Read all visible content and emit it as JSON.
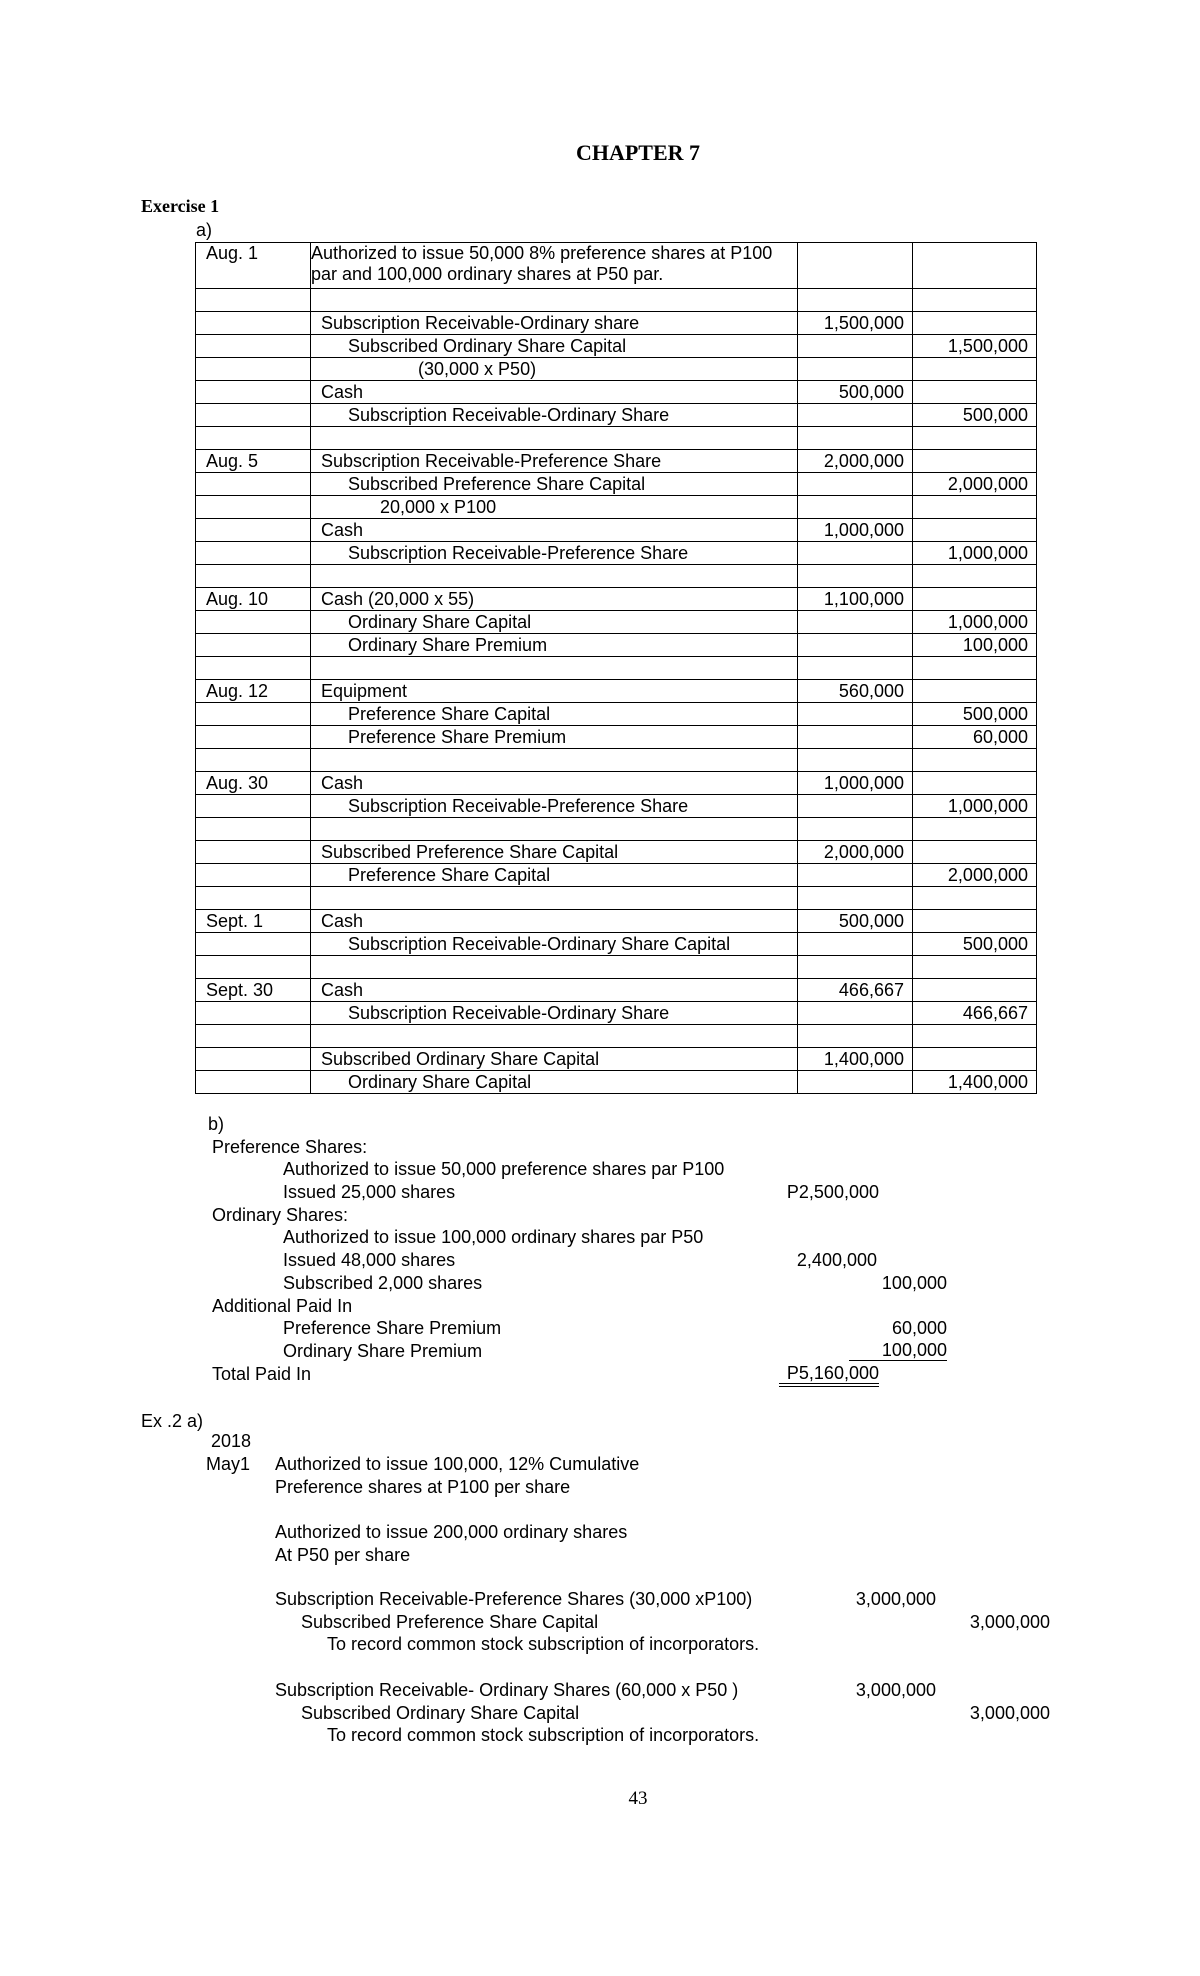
{
  "chapter_title": "CHAPTER 7",
  "exercise1": {
    "label": "Exercise 1",
    "part_a_label": "a)",
    "journal": [
      {
        "date": "Aug.  1",
        "text": "Authorized to issue 50,000 8% preference shares at P100 par and 100,000 ordinary shares at P50 par.",
        "kind": "heading",
        "debit": "",
        "credit": ""
      },
      {
        "date": "",
        "text": "",
        "kind": "debit",
        "debit": "",
        "credit": ""
      },
      {
        "date": "",
        "text": "Subscription Receivable-Ordinary share",
        "kind": "debit",
        "debit": "1,500,000",
        "credit": ""
      },
      {
        "date": "",
        "text": "Subscribed Ordinary Share Capital",
        "kind": "credit",
        "debit": "",
        "credit": "1,500,000"
      },
      {
        "date": "",
        "text": "(30,000 x P50)",
        "kind": "explanation-deep",
        "debit": "",
        "credit": ""
      },
      {
        "date": "",
        "text": "Cash",
        "kind": "debit",
        "debit": "500,000",
        "credit": ""
      },
      {
        "date": "",
        "text": "Subscription Receivable-Ordinary Share",
        "kind": "credit",
        "debit": "",
        "credit": "500,000"
      },
      {
        "date": "",
        "text": "",
        "kind": "debit",
        "debit": "",
        "credit": ""
      },
      {
        "date": "Aug. 5",
        "text": "Subscription Receivable-Preference Share",
        "kind": "debit",
        "debit": "2,000,000",
        "credit": ""
      },
      {
        "date": "",
        "text": "Subscribed Preference Share Capital",
        "kind": "credit",
        "debit": "",
        "credit": "2,000,000"
      },
      {
        "date": "",
        "text": "20,000 x P100",
        "kind": "explanation",
        "debit": "",
        "credit": ""
      },
      {
        "date": "",
        "text": "Cash",
        "kind": "debit",
        "debit": "1,000,000",
        "credit": ""
      },
      {
        "date": "",
        "text": "Subscription Receivable-Preference Share",
        "kind": "credit",
        "debit": "",
        "credit": "1,000,000"
      },
      {
        "date": "",
        "text": "",
        "kind": "debit",
        "debit": "",
        "credit": ""
      },
      {
        "date": "Aug. 10",
        "text": "Cash (20,000 x 55)",
        "kind": "debit",
        "debit": "1,100,000",
        "credit": ""
      },
      {
        "date": "",
        "text": "Ordinary Share Capital",
        "kind": "credit",
        "debit": "",
        "credit": "1,000,000"
      },
      {
        "date": "",
        "text": "Ordinary Share Premium",
        "kind": "credit",
        "debit": "",
        "credit": "100,000"
      },
      {
        "date": "",
        "text": "",
        "kind": "debit",
        "debit": "",
        "credit": ""
      },
      {
        "date": "Aug. 12",
        "text": "Equipment",
        "kind": "debit",
        "debit": "560,000",
        "credit": ""
      },
      {
        "date": "",
        "text": "Preference Share Capital",
        "kind": "credit",
        "debit": "",
        "credit": "500,000"
      },
      {
        "date": "",
        "text": "Preference Share Premium",
        "kind": "credit",
        "debit": "",
        "credit": "60,000"
      },
      {
        "date": "",
        "text": "",
        "kind": "debit",
        "debit": "",
        "credit": ""
      },
      {
        "date": "Aug. 30",
        "text": "Cash",
        "kind": "debit",
        "debit": "1,000,000",
        "credit": ""
      },
      {
        "date": "",
        "text": "Subscription Receivable-Preference Share",
        "kind": "credit",
        "debit": "",
        "credit": "1,000,000"
      },
      {
        "date": "",
        "text": "",
        "kind": "debit",
        "debit": "",
        "credit": ""
      },
      {
        "date": "",
        "text": "Subscribed Preference Share Capital",
        "kind": "debit",
        "debit": "2,000,000",
        "credit": ""
      },
      {
        "date": "",
        "text": "Preference Share Capital",
        "kind": "credit",
        "debit": "",
        "credit": "2,000,000"
      },
      {
        "date": "",
        "text": "",
        "kind": "debit",
        "debit": "",
        "credit": ""
      },
      {
        "date": "Sept.  1",
        "text": "Cash",
        "kind": "debit",
        "debit": "500,000",
        "credit": ""
      },
      {
        "date": "",
        "text": "Subscription Receivable-Ordinary Share Capital",
        "kind": "credit",
        "debit": "",
        "credit": "500,000"
      },
      {
        "date": "",
        "text": "",
        "kind": "debit",
        "debit": "",
        "credit": ""
      },
      {
        "date": "Sept.  30",
        "text": "Cash",
        "kind": "debit",
        "debit": "466,667",
        "credit": ""
      },
      {
        "date": "",
        "text": "Subscription Receivable-Ordinary Share",
        "kind": "credit",
        "debit": "",
        "credit": "466,667"
      },
      {
        "date": "",
        "text": "",
        "kind": "debit",
        "debit": "",
        "credit": ""
      },
      {
        "date": "",
        "text": "Subscribed Ordinary Share Capital",
        "kind": "debit",
        "debit": "1,400,000",
        "credit": ""
      },
      {
        "date": "",
        "text": "Ordinary Share Capital",
        "kind": "credit",
        "debit": "",
        "credit": "1,400,000"
      }
    ],
    "part_b": {
      "label": "b)",
      "pref_heading": "Preference Shares:",
      "pref_authorized": "Authorized to issue 50,000 preference shares par P100",
      "pref_issued": "Issued 25,000 shares",
      "pref_issued_amount": "P2,500,000",
      "ord_heading": "Ordinary Shares:",
      "ord_authorized": "Authorized to issue 100,000 ordinary shares par P50",
      "ord_issued": "Issued 48,000 shares",
      "ord_issued_amount": "2,400,000",
      "ord_subscribed": "Subscribed 2,000 shares",
      "ord_subscribed_amount": "100,000",
      "apic_heading": "Additional Paid In",
      "pref_premium": "Preference Share Premium",
      "pref_premium_amount": "60,000",
      "ord_premium": "Ordinary Share Premium",
      "ord_premium_amount": "100,000",
      "total_label": "Total Paid In",
      "total_amount": "P5,160,000"
    }
  },
  "exercise2": {
    "label": "Ex .2 a)",
    "year": "2018",
    "date": "May1",
    "auth1_line1": "Authorized to issue 100,000, 12% Cumulative",
    "auth1_line2": "Preference shares at P100 per share",
    "auth2_line1": "Authorized to issue 200,000 ordinary shares",
    "auth2_line2": "At P50 per share",
    "entry1": {
      "debit_account": "Subscription Receivable-Preference Shares (30,000 xP100)",
      "debit_amount": "3,000,000",
      "credit_account": "Subscribed Preference Share Capital",
      "credit_amount": "3,000,000",
      "explanation": "To record common stock subscription of incorporators."
    },
    "entry2": {
      "debit_account": "Subscription Receivable- Ordinary Shares (60,000 x P50 )",
      "debit_amount": "3,000,000",
      "credit_account": "Subscribed Ordinary Share Capital",
      "credit_amount": "3,000,000",
      "explanation": "To record common stock subscription of incorporators."
    }
  },
  "page_number": "43"
}
